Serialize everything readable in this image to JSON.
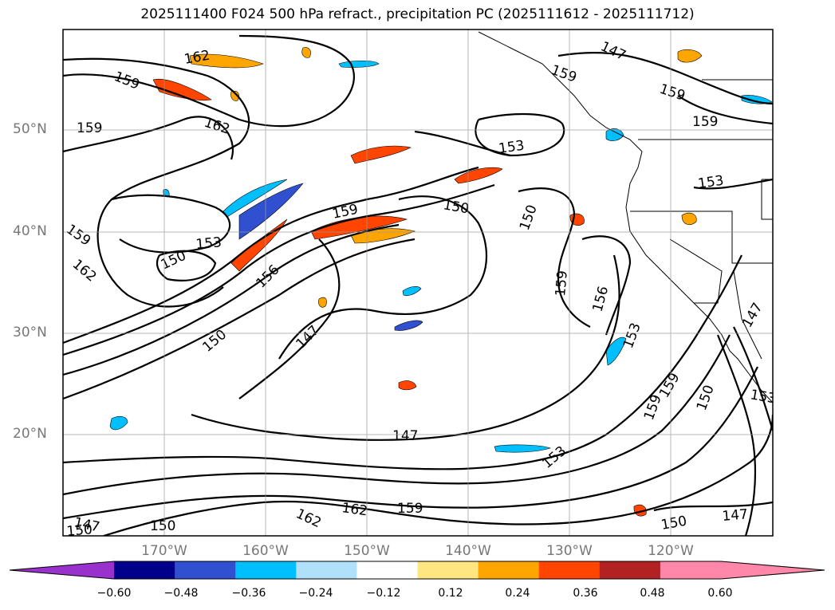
{
  "title": "2025111400 F024 500 hPa refract., precipitation PC (2025111612 - 2025111712)",
  "lat_labels": [
    "50°N",
    "40°N",
    "30°N",
    "20°N"
  ],
  "lon_labels": [
    "170°W",
    "160°W",
    "150°W",
    "140°W",
    "130°W",
    "120°W"
  ],
  "contour_labels": [
    "162",
    "159",
    "159",
    "162",
    "159",
    "162",
    "153",
    "159",
    "156",
    "150",
    "150",
    "159",
    "150",
    "153",
    "147",
    "147",
    "147",
    "150",
    "153",
    "150",
    "156",
    "159",
    "153",
    "159",
    "150",
    "147",
    "153",
    "153",
    "159",
    "159",
    "159",
    "150",
    "147",
    "150",
    "162",
    "162",
    "159",
    "147"
  ],
  "colorbar": {
    "ticks": [
      "−0.60",
      "−0.48",
      "−0.36",
      "−0.24",
      "−0.12",
      "0.12",
      "0.24",
      "0.36",
      "0.48",
      "0.60"
    ],
    "colors": [
      "#9932cc",
      "#00008b",
      "#3050d0",
      "#00bfff",
      "#b0e0fa",
      "#ffffff",
      "#ffe680",
      "#ffa500",
      "#ff4500",
      "#b22222",
      "#ff88aa",
      "#ff88aa"
    ]
  },
  "colors": {
    "lightblue": "#b0e0fa",
    "cyan": "#00bfff",
    "blue": "#3050d0",
    "yellow": "#ffe680",
    "orange": "#ffa500",
    "red": "#ff4500"
  }
}
